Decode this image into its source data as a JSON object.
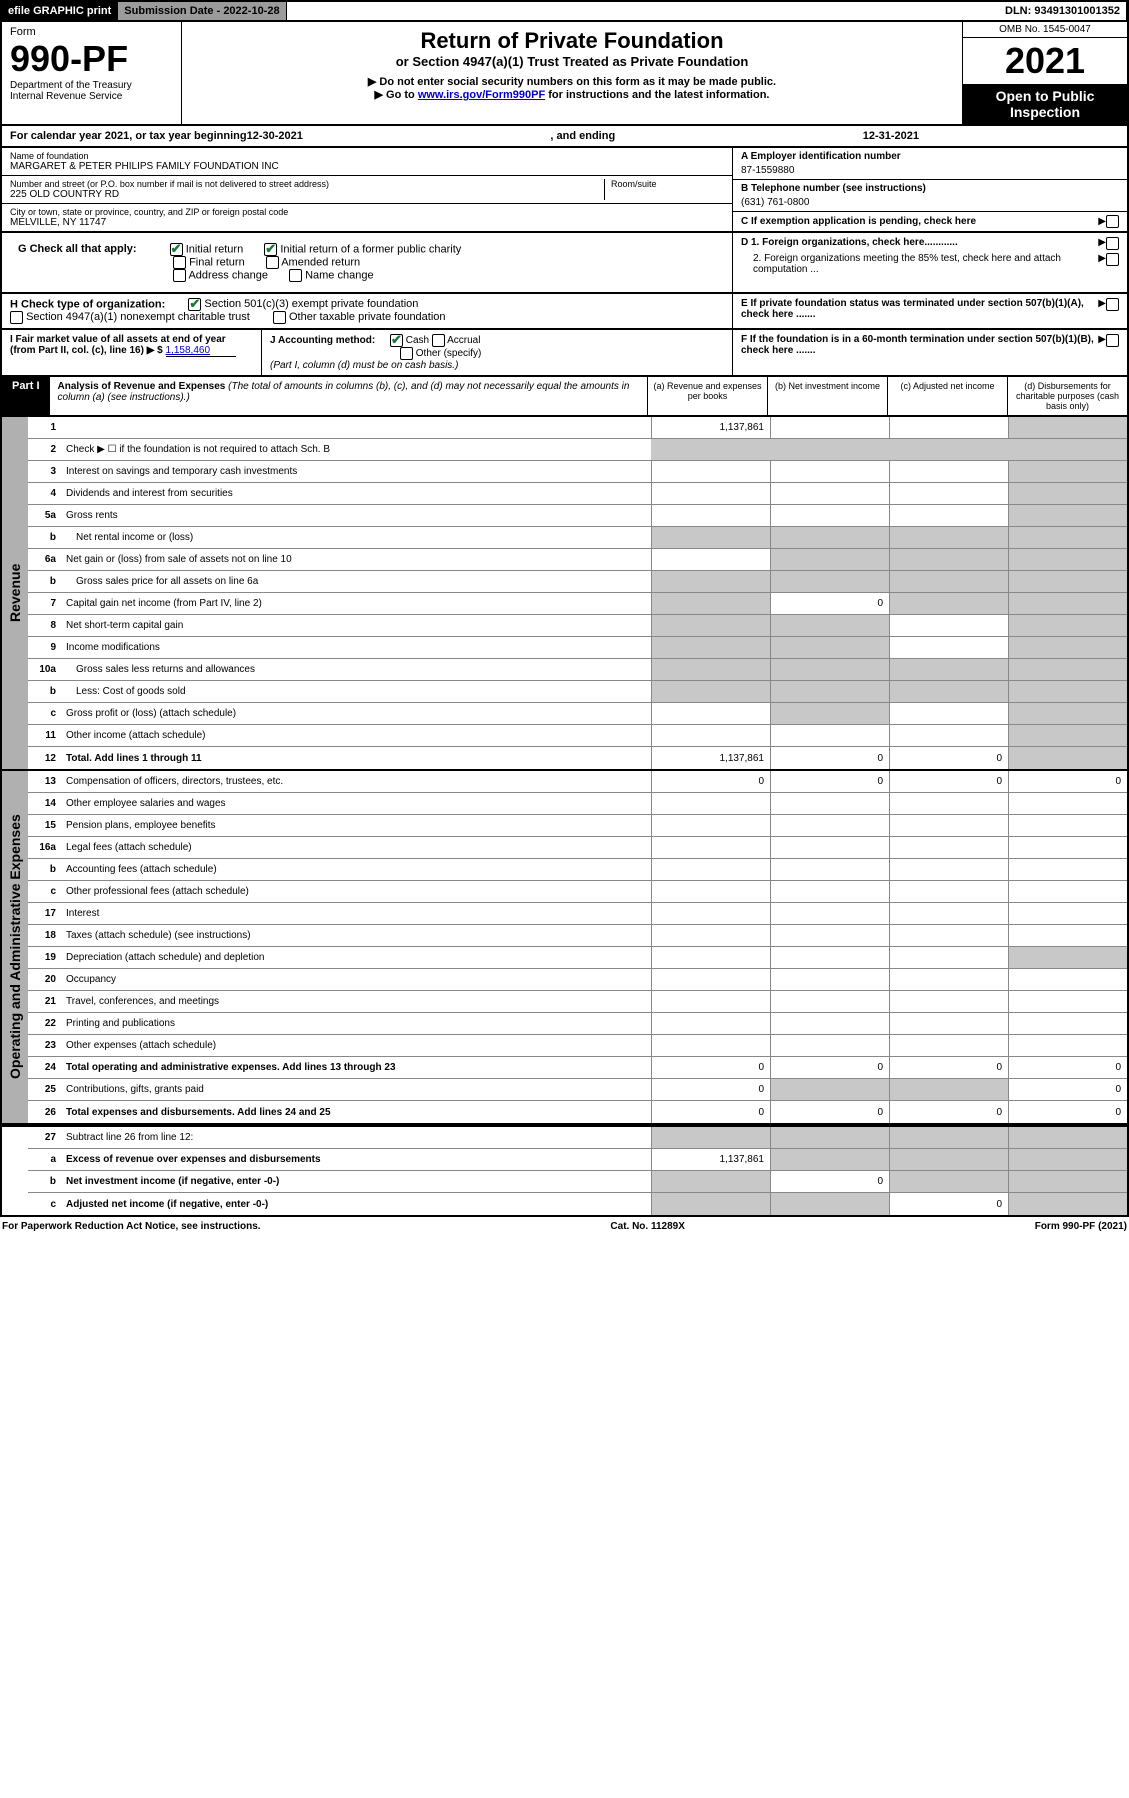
{
  "topbar": {
    "efile": "efile GRAPHIC print",
    "subdate_label": "Submission Date - 2022-10-28",
    "dln": "DLN: 93491301001352"
  },
  "header": {
    "form_label": "Form",
    "form_num": "990-PF",
    "dept": "Department of the Treasury",
    "irs": "Internal Revenue Service",
    "title": "Return of Private Foundation",
    "subtitle": "or Section 4947(a)(1) Trust Treated as Private Foundation",
    "note1": "▶ Do not enter social security numbers on this form as it may be made public.",
    "note2_pre": "▶ Go to ",
    "note2_link": "www.irs.gov/Form990PF",
    "note2_post": " for instructions and the latest information.",
    "omb": "OMB No. 1545-0047",
    "year": "2021",
    "open": "Open to Public Inspection"
  },
  "calyear": {
    "pre": "For calendar year 2021, or tax year beginning ",
    "begin": "12-30-2021",
    "mid": " , and ending ",
    "end": "12-31-2021"
  },
  "info": {
    "name_lbl": "Name of foundation",
    "name": "MARGARET & PETER PHILIPS FAMILY FOUNDATION INC",
    "addr_lbl": "Number and street (or P.O. box number if mail is not delivered to street address)",
    "addr": "225 OLD COUNTRY RD",
    "room_lbl": "Room/suite",
    "city_lbl": "City or town, state or province, country, and ZIP or foreign postal code",
    "city": "MELVILLE, NY  11747",
    "ein_lbl": "A Employer identification number",
    "ein": "87-1559880",
    "tel_lbl": "B Telephone number (see instructions)",
    "tel": "(631) 761-0800",
    "c": "C If exemption application is pending, check here",
    "d1": "D 1. Foreign organizations, check here............",
    "d2": "2. Foreign organizations meeting the 85% test, check here and attach computation ...",
    "e": "E If private foundation status was terminated under section 507(b)(1)(A), check here .......",
    "f": "F If the foundation is in a 60-month termination under section 507(b)(1)(B), check here .......",
    "g_lbl": "G Check all that apply:",
    "g_opts": [
      "Initial return",
      "Initial return of a former public charity",
      "Final return",
      "Amended return",
      "Address change",
      "Name change"
    ],
    "h_lbl": "H Check type of organization:",
    "h_opts": [
      "Section 501(c)(3) exempt private foundation",
      "Section 4947(a)(1) nonexempt charitable trust",
      "Other taxable private foundation"
    ],
    "i_lbl": "I Fair market value of all assets at end of year (from Part II, col. (c), line 16) ▶ $",
    "i_val": "1,158,460",
    "j_lbl": "J Accounting method:",
    "j_cash": "Cash",
    "j_accr": "Accrual",
    "j_other": "Other (specify)",
    "j_note": "(Part I, column (d) must be on cash basis.)"
  },
  "part1": {
    "label": "Part I",
    "title": "Analysis of Revenue and Expenses",
    "title_note": "(The total of amounts in columns (b), (c), and (d) may not necessarily equal the amounts in column (a) (see instructions).)",
    "col_a": "(a) Revenue and expenses per books",
    "col_b": "(b) Net investment income",
    "col_c": "(c) Adjusted net income",
    "col_d": "(d) Disbursements for charitable purposes (cash basis only)"
  },
  "sections": {
    "revenue": "Revenue",
    "expenses": "Operating and Administrative Expenses"
  },
  "rows": [
    {
      "sec": "rev",
      "n": "1",
      "d": "",
      "a": "1,137,861",
      "b": "",
      "c": "",
      "grey": [
        "d"
      ]
    },
    {
      "sec": "rev",
      "n": "2",
      "d": "Check ▶ ☐ if the foundation is not required to attach Sch. B",
      "nocells": true
    },
    {
      "sec": "rev",
      "n": "3",
      "d": "Interest on savings and temporary cash investments",
      "grey": [
        "d"
      ]
    },
    {
      "sec": "rev",
      "n": "4",
      "d": "Dividends and interest from securities",
      "grey": [
        "d"
      ]
    },
    {
      "sec": "rev",
      "n": "5a",
      "d": "Gross rents",
      "grey": [
        "d"
      ]
    },
    {
      "sec": "rev",
      "n": "b",
      "d": "Net rental income or (loss)",
      "grey": [
        "a",
        "b",
        "c",
        "d"
      ],
      "indent": true
    },
    {
      "sec": "rev",
      "n": "6a",
      "d": "Net gain or (loss) from sale of assets not on line 10",
      "grey": [
        "b",
        "c",
        "d"
      ]
    },
    {
      "sec": "rev",
      "n": "b",
      "d": "Gross sales price for all assets on line 6a",
      "grey": [
        "a",
        "b",
        "c",
        "d"
      ],
      "indent": true
    },
    {
      "sec": "rev",
      "n": "7",
      "d": "Capital gain net income (from Part IV, line 2)",
      "b": "0",
      "grey": [
        "a",
        "c",
        "d"
      ]
    },
    {
      "sec": "rev",
      "n": "8",
      "d": "Net short-term capital gain",
      "grey": [
        "a",
        "b",
        "d"
      ]
    },
    {
      "sec": "rev",
      "n": "9",
      "d": "Income modifications",
      "grey": [
        "a",
        "b",
        "d"
      ]
    },
    {
      "sec": "rev",
      "n": "10a",
      "d": "Gross sales less returns and allowances",
      "grey": [
        "a",
        "b",
        "c",
        "d"
      ],
      "indent": true
    },
    {
      "sec": "rev",
      "n": "b",
      "d": "Less: Cost of goods sold",
      "grey": [
        "a",
        "b",
        "c",
        "d"
      ],
      "indent": true
    },
    {
      "sec": "rev",
      "n": "c",
      "d": "Gross profit or (loss) (attach schedule)",
      "grey": [
        "b",
        "d"
      ]
    },
    {
      "sec": "rev",
      "n": "11",
      "d": "Other income (attach schedule)",
      "grey": [
        "d"
      ]
    },
    {
      "sec": "rev",
      "n": "12",
      "d": "Total. Add lines 1 through 11",
      "bold": true,
      "a": "1,137,861",
      "b": "0",
      "c": "0",
      "grey": [
        "d"
      ]
    },
    {
      "sec": "exp",
      "n": "13",
      "d": "Compensation of officers, directors, trustees, etc.",
      "a": "0",
      "b": "0",
      "c": "0",
      "dd": "0"
    },
    {
      "sec": "exp",
      "n": "14",
      "d": "Other employee salaries and wages"
    },
    {
      "sec": "exp",
      "n": "15",
      "d": "Pension plans, employee benefits"
    },
    {
      "sec": "exp",
      "n": "16a",
      "d": "Legal fees (attach schedule)"
    },
    {
      "sec": "exp",
      "n": "b",
      "d": "Accounting fees (attach schedule)"
    },
    {
      "sec": "exp",
      "n": "c",
      "d": "Other professional fees (attach schedule)"
    },
    {
      "sec": "exp",
      "n": "17",
      "d": "Interest"
    },
    {
      "sec": "exp",
      "n": "18",
      "d": "Taxes (attach schedule) (see instructions)"
    },
    {
      "sec": "exp",
      "n": "19",
      "d": "Depreciation (attach schedule) and depletion",
      "grey": [
        "d"
      ]
    },
    {
      "sec": "exp",
      "n": "20",
      "d": "Occupancy"
    },
    {
      "sec": "exp",
      "n": "21",
      "d": "Travel, conferences, and meetings"
    },
    {
      "sec": "exp",
      "n": "22",
      "d": "Printing and publications"
    },
    {
      "sec": "exp",
      "n": "23",
      "d": "Other expenses (attach schedule)"
    },
    {
      "sec": "exp",
      "n": "24",
      "d": "Total operating and administrative expenses. Add lines 13 through 23",
      "bold": true,
      "a": "0",
      "b": "0",
      "c": "0",
      "dd": "0"
    },
    {
      "sec": "exp",
      "n": "25",
      "d": "Contributions, gifts, grants paid",
      "a": "0",
      "grey": [
        "b",
        "c"
      ],
      "dd": "0"
    },
    {
      "sec": "exp",
      "n": "26",
      "d": "Total expenses and disbursements. Add lines 24 and 25",
      "bold": true,
      "a": "0",
      "b": "0",
      "c": "0",
      "dd": "0"
    },
    {
      "sec": "none",
      "n": "27",
      "d": "Subtract line 26 from line 12:",
      "grey": [
        "a",
        "b",
        "c",
        "d"
      ]
    },
    {
      "sec": "none",
      "n": "a",
      "d": "Excess of revenue over expenses and disbursements",
      "bold": true,
      "a": "1,137,861",
      "grey": [
        "b",
        "c",
        "d"
      ]
    },
    {
      "sec": "none",
      "n": "b",
      "d": "Net investment income (if negative, enter -0-)",
      "bold": true,
      "b": "0",
      "grey": [
        "a",
        "c",
        "d"
      ]
    },
    {
      "sec": "none",
      "n": "c",
      "d": "Adjusted net income (if negative, enter -0-)",
      "bold": true,
      "c": "0",
      "grey": [
        "a",
        "b",
        "d"
      ]
    }
  ],
  "footer": {
    "left": "For Paperwork Reduction Act Notice, see instructions.",
    "mid": "Cat. No. 11289X",
    "right": "Form 990-PF (2021)"
  }
}
